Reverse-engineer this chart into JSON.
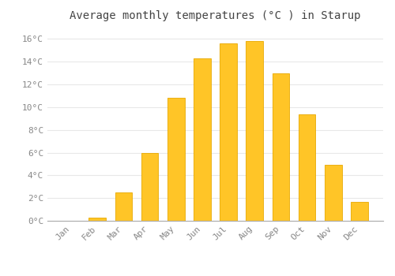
{
  "title": "Average monthly temperatures (°C ) in Starup",
  "months": [
    "Jan",
    "Feb",
    "Mar",
    "Apr",
    "May",
    "Jun",
    "Jul",
    "Aug",
    "Sep",
    "Oct",
    "Nov",
    "Dec"
  ],
  "values": [
    0.0,
    0.3,
    2.5,
    6.0,
    10.8,
    14.3,
    15.6,
    15.8,
    13.0,
    9.4,
    4.9,
    1.7
  ],
  "bar_color": "#FFC527",
  "bar_edge_color": "#E8A800",
  "background_color": "#FFFFFF",
  "grid_color": "#E8E8E8",
  "text_color": "#888888",
  "title_color": "#444444",
  "ylim": [
    0,
    17
  ],
  "yticks": [
    0,
    2,
    4,
    6,
    8,
    10,
    12,
    14,
    16
  ],
  "ytick_labels": [
    "0°C",
    "2°C",
    "4°C",
    "6°C",
    "8°C",
    "10°C",
    "12°C",
    "14°C",
    "16°C"
  ],
  "title_fontsize": 10,
  "tick_fontsize": 8,
  "font_family": "monospace",
  "bar_width": 0.65
}
